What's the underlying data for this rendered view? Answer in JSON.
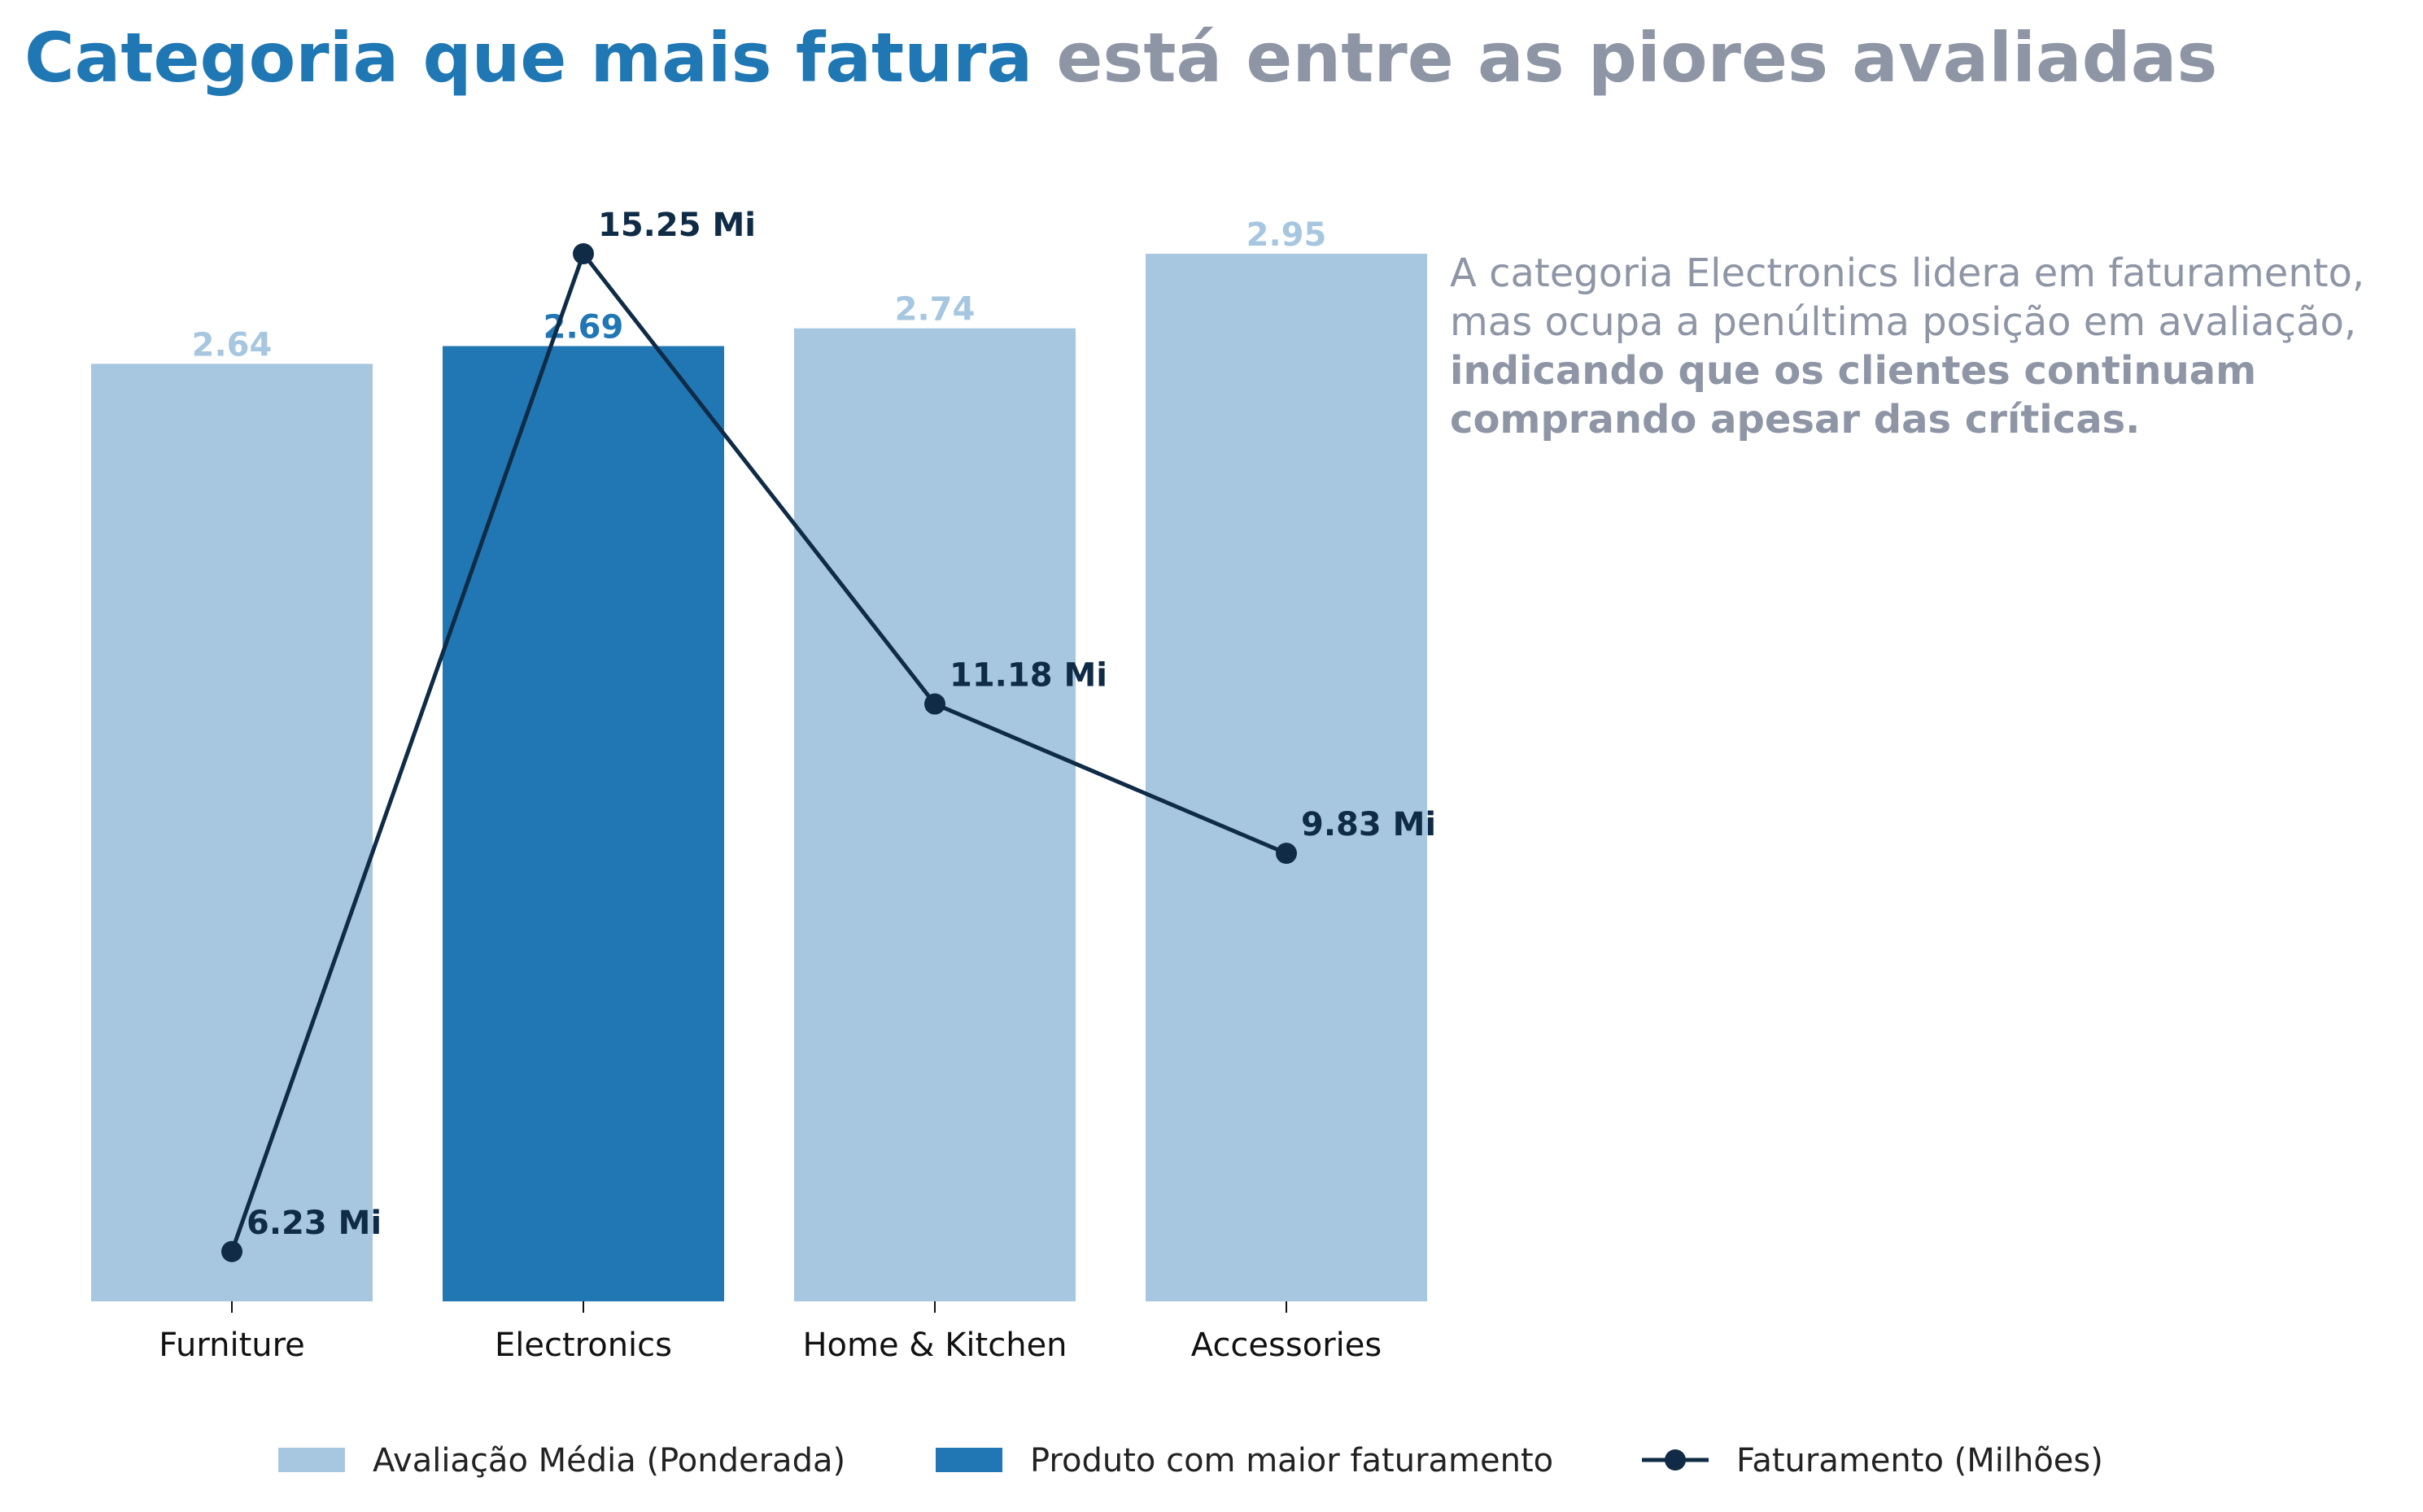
{
  "title": {
    "highlight": "Categoria que mais fatura",
    "rest": " está entre as piores avaliadas"
  },
  "annotation": {
    "line1": "A categoria Electronics lidera em faturamento,",
    "line2": "mas ocupa a penúltima posição em avaliação,",
    "line3": "indicando que os clientes continuam",
    "line4": "comprando apesar das críticas."
  },
  "legend": {
    "bars": "Avaliação Média (Ponderada)",
    "highlight": "Produto com maior faturamento",
    "line": "Faturamento (Milhões)"
  },
  "colors": {
    "title_highlight": "#1f77b4",
    "title_rest": "#8e96a6",
    "bar": "#a6c7df",
    "bar_highlight": "#2176b4",
    "line": "#0f2b46",
    "annotation": "#8e96a6"
  },
  "chart_data": {
    "type": "bar",
    "categories": [
      "Furniture",
      "Electronics",
      "Home & Kitchen",
      "Accessories"
    ],
    "series": [
      {
        "name": "Avaliação Média (Ponderada)",
        "type": "bar",
        "values": [
          2.64,
          2.69,
          2.74,
          2.95
        ],
        "labels": [
          "2.64",
          "2.69",
          "2.74",
          "2.95"
        ],
        "highlight_index": 1
      },
      {
        "name": "Faturamento (Milhões)",
        "type": "line",
        "values": [
          6.23,
          15.25,
          11.18,
          9.83
        ],
        "labels": [
          "6.23 Mi",
          "15.25 Mi",
          "11.18 Mi",
          "9.83 Mi"
        ]
      }
    ],
    "bar_ylim": [
      0,
      2.95
    ],
    "line_ylim": [
      5.78,
      15.25
    ],
    "grid": false,
    "legend": "bottom-center"
  }
}
